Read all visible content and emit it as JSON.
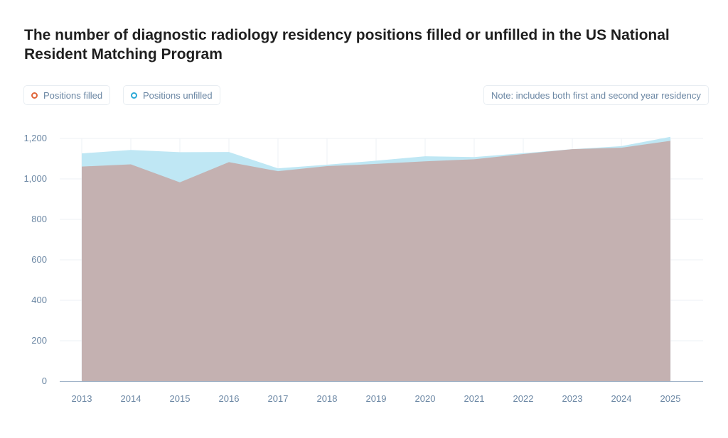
{
  "chart_data": {
    "type": "area",
    "title": "The number of diagnostic radiology residency positions filled or unfilled in the US National Resident Matching Program",
    "note": "Note: includes both first and second year residency",
    "categories": [
      "2013",
      "2014",
      "2015",
      "2016",
      "2017",
      "2018",
      "2019",
      "2020",
      "2021",
      "2022",
      "2023",
      "2024",
      "2025"
    ],
    "series": [
      {
        "name": "Positions filled",
        "color": "#e0663a",
        "fill": "#c4b1b1",
        "values": [
          1061,
          1072,
          983,
          1083,
          1038,
          1063,
          1074,
          1087,
          1097,
          1123,
          1147,
          1154,
          1188
        ]
      },
      {
        "name": "Positions unfilled",
        "color": "#2aa8d6",
        "fill": "#bfe7f4",
        "values": [
          1126,
          1143,
          1132,
          1133,
          1052,
          1070,
          1090,
          1112,
          1108,
          1127,
          1147,
          1162,
          1208
        ]
      }
    ],
    "ylim": [
      0,
      1200
    ],
    "yticks": [
      0,
      200,
      400,
      600,
      800,
      1000,
      1200
    ],
    "ytick_labels": [
      "0",
      "200",
      "400",
      "600",
      "800",
      "1,000",
      "1,200"
    ],
    "grid": true,
    "legend": "top-left"
  }
}
